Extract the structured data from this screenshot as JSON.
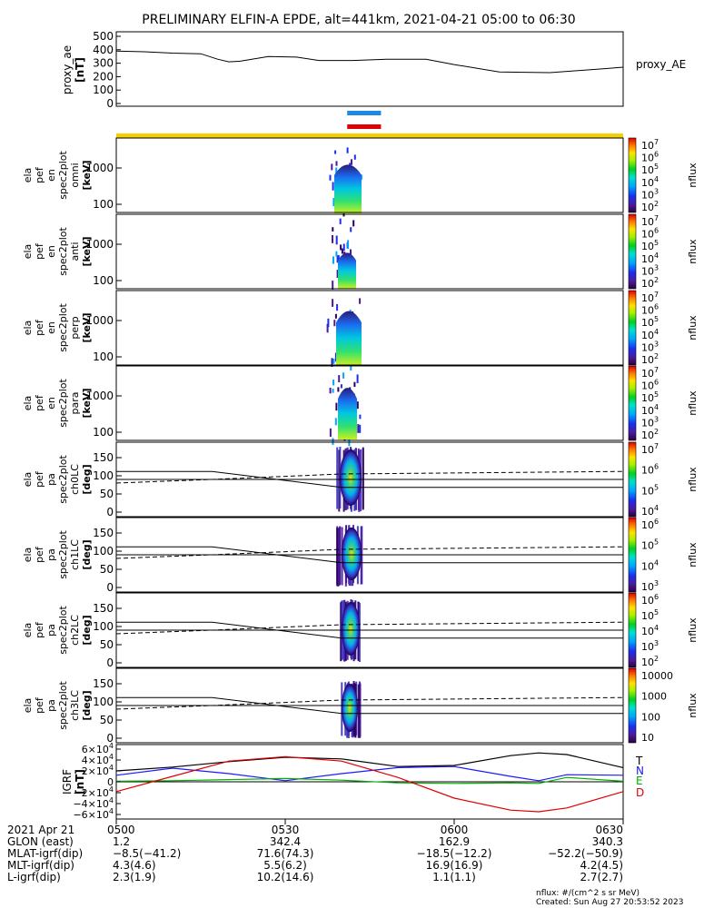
{
  "title": "PRELIMINARY ELFIN-A EPDE, alt=441km, 2021-04-21 05:00 to 06:30",
  "colors": {
    "orbit_bar_blue": "#1e88e5",
    "orbit_bar_red": "#e00000",
    "science_zone_bar": "#f5d000",
    "grf_T": "#000000",
    "grf_N": "#1a1aff",
    "grf_E": "#00b000",
    "grf_D": "#e00000"
  },
  "side_labels": {
    "proxy_ae": "proxy_AE",
    "grf_T": "T",
    "grf_N": "N",
    "grf_E": "E",
    "grf_D": "D",
    "nflux": "nflux"
  },
  "panel_ylabels": {
    "proxy_ae": [
      "proxy_ae",
      "[nT]"
    ],
    "en_omni": [
      "ela",
      "pef",
      "en",
      "spec2plot",
      "omni",
      "[keV]"
    ],
    "en_anti": [
      "ela",
      "pef",
      "en",
      "spec2plot",
      "anti",
      "[keV]"
    ],
    "en_perp": [
      "ela",
      "pef",
      "en",
      "spec2plot",
      "perp",
      "[keV]"
    ],
    "en_para": [
      "ela",
      "pef",
      "en",
      "spec2plot",
      "para",
      "[keV]"
    ],
    "pa_ch0": [
      "ela",
      "pef",
      "pa",
      "spec2plot",
      "ch0LC",
      "[deg]"
    ],
    "pa_ch1": [
      "ela",
      "pef",
      "pa",
      "spec2plot",
      "ch1LC",
      "[deg]"
    ],
    "pa_ch2": [
      "ela",
      "pef",
      "pa",
      "spec2plot",
      "ch2LC",
      "[deg]"
    ],
    "pa_ch3": [
      "ela",
      "pef",
      "pa",
      "spec2plot",
      "ch3LC",
      "[deg]"
    ],
    "grf": [
      "IGRF",
      "[nT]"
    ]
  },
  "ticks": {
    "proxy_ae": [
      "500",
      "400",
      "300",
      "200",
      "100",
      "0"
    ],
    "energy": [
      "1000",
      "100"
    ],
    "pa": [
      "150",
      "100",
      "50",
      "0"
    ],
    "grf_mantissa": [
      "6",
      "4",
      "2",
      "0",
      "−2",
      "−4",
      "−6"
    ],
    "grf_base": "×10",
    "grf_exp": "4"
  },
  "colorbars": {
    "en_omni": [
      "10",
      "7",
      "6",
      "5",
      "4",
      "3",
      "2"
    ],
    "en_anti": [
      "10",
      "7",
      "6",
      "5",
      "4",
      "3",
      "2"
    ],
    "en_perp": [
      "10",
      "7",
      "6",
      "5",
      "4",
      "3",
      "2"
    ],
    "en_para": [
      "10",
      "7",
      "6",
      "5",
      "4",
      "3",
      "2"
    ],
    "pa_ch0": [
      "10",
      "7",
      "6",
      "5",
      "4"
    ],
    "pa_ch1": [
      "10",
      "6",
      "5",
      "4",
      "3"
    ],
    "pa_ch2": [
      "10",
      "6",
      "5",
      "4",
      "3",
      "2"
    ],
    "pa_ch3": [
      "10000",
      "1000",
      "100",
      "10"
    ]
  },
  "bottom_table": {
    "row_labels": [
      "2021 Apr 21",
      "GLON (east)",
      "MLAT-igrf(dip)",
      "MLT-igrf(dip)",
      "L-igrf(dip)"
    ],
    "columns": [
      {
        "time": "0500",
        "values": [
          "1.2",
          "−8.5(−41.2)",
          "4.3(4.6)",
          "2.3(1.9)"
        ]
      },
      {
        "time": "0530",
        "values": [
          "342.4",
          "71.6(74.3)",
          "5.5(6.2)",
          "10.2(14.6)"
        ]
      },
      {
        "time": "0600",
        "values": [
          "162.9",
          "−18.5(−12.2)",
          "16.9(16.9)",
          "1.1(1.1)"
        ]
      },
      {
        "time": "0630",
        "values": [
          "340.3",
          "−52.2(−50.9)",
          "4.2(4.5)",
          "2.7(2.7)"
        ]
      }
    ]
  },
  "footer": {
    "units": "nflux: #/(cm^2 s sr MeV)",
    "created": "Created: Sun Aug 27 20:53:52 2023"
  },
  "chart_data": {
    "type": "line",
    "title": "PRELIMINARY ELFIN-A EPDE, alt=441km, 2021-04-21 05:00 to 06:30",
    "x_range": [
      "05:00",
      "06:30"
    ],
    "x_tick_labels": [
      "0500",
      "0530",
      "0600",
      "0630"
    ],
    "panels": [
      {
        "name": "proxy_ae",
        "type": "line",
        "ylim": [
          0,
          500
        ],
        "x": [
          "05:00",
          "05:05",
          "05:10",
          "05:15",
          "05:18",
          "05:20",
          "05:22",
          "05:27",
          "05:32",
          "05:36",
          "05:42",
          "05:48",
          "05:55",
          "06:00",
          "06:08",
          "06:17",
          "06:27",
          "06:30"
        ],
        "y": [
          390,
          385,
          375,
          370,
          330,
          310,
          315,
          350,
          345,
          320,
          320,
          330,
          330,
          290,
          235,
          230,
          260,
          270
        ]
      },
      {
        "name": "orbit_bars",
        "x_range": [
          "05:41",
          "05:47"
        ]
      },
      {
        "name": "en_omni",
        "type": "heatmap",
        "yscale": "log",
        "ylim_keV": [
          50,
          7000
        ],
        "active_x_range": [
          "05:43",
          "05:45"
        ],
        "colorbar_range": [
          "10^2",
          "10^7"
        ]
      },
      {
        "name": "pa_ch0",
        "type": "heatmap",
        "ylim_deg": [
          0,
          180
        ],
        "active_x_range": [
          "05:44",
          "05:46"
        ],
        "loss_cone_lines": "solid and dashed"
      },
      {
        "name": "grf",
        "type": "line",
        "ylim": [
          -60000,
          60000
        ],
        "series": [
          {
            "name": "T",
            "x": [
              "05:00",
              "05:10",
              "05:20",
              "05:30",
              "05:40",
              "05:50",
              "06:00",
              "06:10",
              "06:15",
              "06:20",
              "06:30"
            ],
            "values": [
              20000,
              27000,
              37000,
              45000,
              42000,
              28000,
              30000,
              48000,
              53000,
              50000,
              26000
            ]
          },
          {
            "name": "N",
            "x": [
              "05:00",
              "05:10",
              "05:20",
              "05:30",
              "05:40",
              "05:50",
              "06:00",
              "06:10",
              "06:15",
              "06:20",
              "06:30"
            ],
            "values": [
              12000,
              25000,
              15000,
              2000,
              15000,
              26000,
              28000,
              10000,
              2000,
              13000,
              12000
            ]
          },
          {
            "name": "E",
            "x": [
              "05:00",
              "05:10",
              "05:20",
              "05:30",
              "05:40",
              "05:50",
              "06:00",
              "06:10",
              "06:15",
              "06:20",
              "06:30"
            ],
            "values": [
              1000,
              2000,
              4000,
              6000,
              3000,
              -2000,
              -3000,
              -2000,
              -3000,
              8000,
              1000
            ]
          },
          {
            "name": "D",
            "x": [
              "05:00",
              "05:10",
              "05:20",
              "05:30",
              "05:40",
              "05:50",
              "06:00",
              "06:10",
              "06:15",
              "06:20",
              "06:30"
            ],
            "values": [
              -18000,
              10000,
              38000,
              46000,
              38000,
              8000,
              -30000,
              -52000,
              -55000,
              -48000,
              -18000
            ]
          }
        ]
      }
    ]
  }
}
